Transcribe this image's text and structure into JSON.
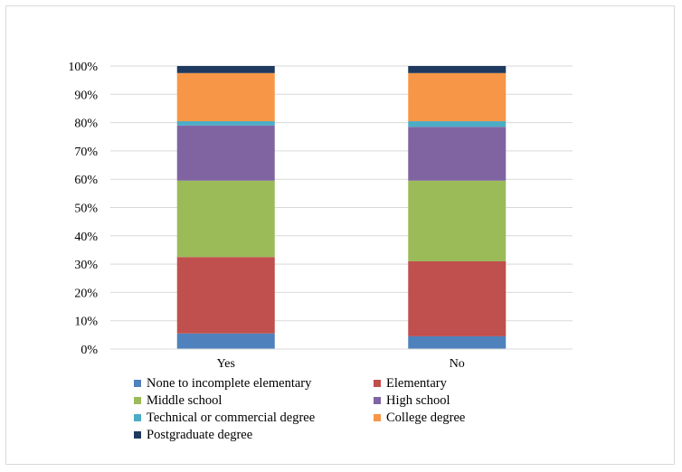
{
  "chart_data": {
    "type": "bar",
    "stacked": true,
    "percent": true,
    "title": "",
    "xlabel": "",
    "ylabel": "",
    "ylim": [
      0,
      100
    ],
    "yticks": [
      "0%",
      "10%",
      "20%",
      "30%",
      "40%",
      "50%",
      "60%",
      "70%",
      "80%",
      "90%",
      "100%"
    ],
    "categories": [
      "Yes",
      "No"
    ],
    "grid": true,
    "legend_position": "bottom",
    "series": [
      {
        "name": "None to incomplete elementary",
        "color": "#4f81bd",
        "values": [
          5.5,
          4.5
        ]
      },
      {
        "name": "Elementary",
        "color": "#c0504d",
        "values": [
          27,
          26.5
        ]
      },
      {
        "name": "Middle school",
        "color": "#9bbb59",
        "values": [
          27,
          28.5
        ]
      },
      {
        "name": "High school",
        "color": "#8064a2",
        "values": [
          19.5,
          19
        ]
      },
      {
        "name": "Technical or commercial degree",
        "color": "#4bacc6",
        "values": [
          1.5,
          2
        ]
      },
      {
        "name": "College degree",
        "color": "#f79646",
        "values": [
          17,
          17
        ]
      },
      {
        "name": "Postgraduate degree",
        "color": "#1f3a5f",
        "values": [
          2.5,
          2.5
        ]
      }
    ]
  }
}
